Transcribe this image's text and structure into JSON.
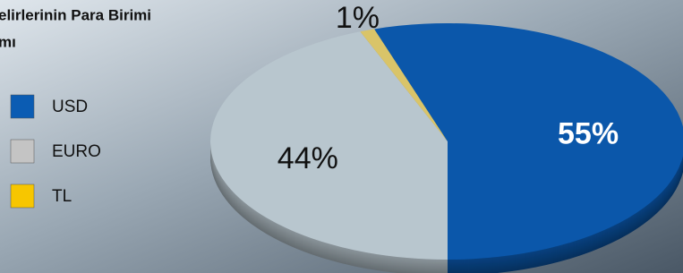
{
  "chart_data": {
    "type": "pie",
    "title": [
      "elirlerinin Para Birimi",
      "mı"
    ],
    "categories": [
      "USD",
      "EURO",
      "TL"
    ],
    "values": [
      55,
      44,
      1
    ],
    "value_labels": [
      "55%",
      "44%",
      "1%"
    ],
    "colors": [
      "#0b57aa",
      "#b8c6ce",
      "#d9c469"
    ],
    "legend_colors": [
      "#0b5cb3",
      "#c4c4c4",
      "#f7c600"
    ],
    "legend": "left"
  }
}
